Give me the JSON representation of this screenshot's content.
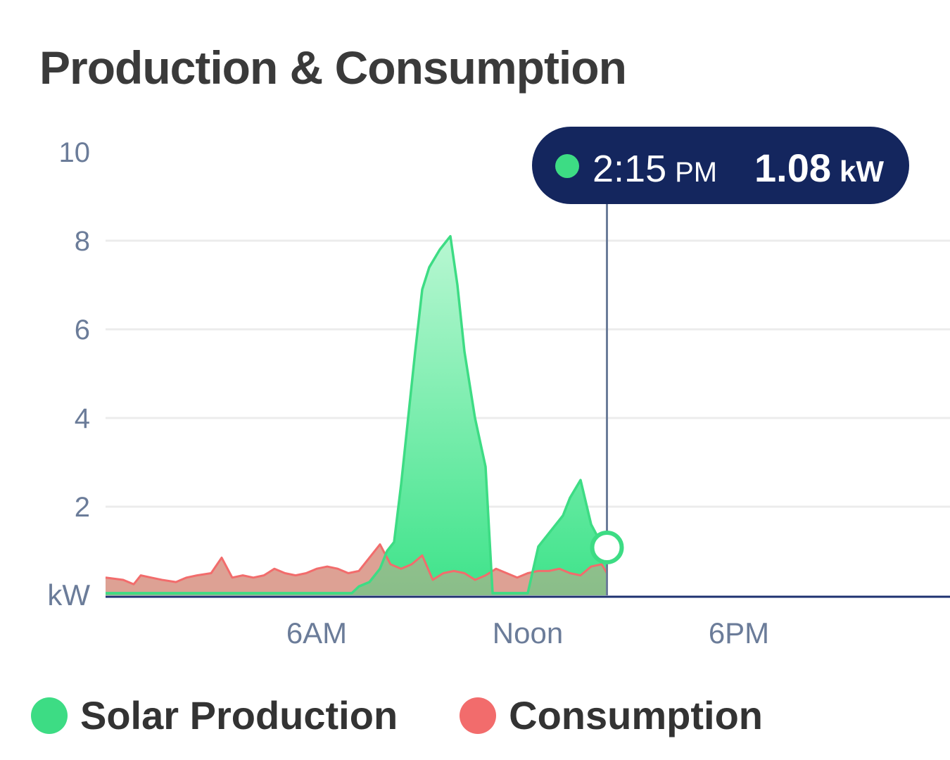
{
  "title": "Production & Consumption",
  "colors": {
    "production": "#3ddc84",
    "production_fill_top": "#b8f7d2",
    "production_fill_bottom": "#3ee38a",
    "consumption": "#f26c6c",
    "consumption_fill": "#f7a3a3",
    "overlap_fill": "#c9a088",
    "grid": "#ececec",
    "axis_text": "#6b7c99",
    "tooltip_bg": "#14265e",
    "cursor_line": "#6b7c99",
    "baseline": "#1e3170"
  },
  "tooltip": {
    "time": "2:15",
    "time_suffix": "PM",
    "value": "1.08",
    "unit": "kW"
  },
  "legend": [
    {
      "label": "Solar Production",
      "color": "#3ddc84"
    },
    {
      "label": "Consumption",
      "color": "#f26c6c"
    }
  ],
  "chart_data": {
    "type": "area",
    "title": "Production & Consumption",
    "ylabel": "kW",
    "ylim": [
      0,
      10
    ],
    "y_ticks": [
      "2",
      "4",
      "6",
      "8",
      "10"
    ],
    "y_unit_label": "kW",
    "xlim": [
      0,
      24
    ],
    "x_tick_positions": [
      6,
      12,
      18
    ],
    "x_tick_labels": [
      "6AM",
      "Noon",
      "6PM"
    ],
    "grid": true,
    "legend_position": "bottom-left",
    "cursor": {
      "x": 14.25,
      "y": 1.08
    },
    "series": [
      {
        "name": "Solar Production",
        "x": [
          0,
          7.0,
          7.2,
          7.5,
          7.8,
          8.0,
          8.2,
          8.4,
          8.6,
          8.8,
          9.0,
          9.2,
          9.5,
          9.8,
          10.0,
          10.2,
          10.5,
          10.8,
          11.0,
          11.3,
          11.5,
          11.7,
          12.0,
          12.3,
          12.8,
          13.0,
          13.2,
          13.5,
          13.8,
          14.0,
          14.25
        ],
        "y": [
          0.05,
          0.05,
          0.2,
          0.3,
          0.6,
          1.0,
          1.2,
          2.5,
          4.0,
          5.5,
          6.9,
          7.4,
          7.8,
          8.1,
          7.0,
          5.5,
          4.0,
          2.9,
          0.05,
          0.05,
          0.05,
          0.05,
          0.05,
          1.1,
          1.6,
          1.8,
          2.2,
          2.6,
          1.6,
          1.3,
          1.08
        ]
      },
      {
        "name": "Consumption",
        "x": [
          0,
          0.5,
          0.8,
          1.0,
          1.3,
          1.6,
          2.0,
          2.3,
          2.6,
          3.0,
          3.3,
          3.6,
          3.9,
          4.2,
          4.5,
          4.8,
          5.1,
          5.4,
          5.7,
          6.0,
          6.3,
          6.6,
          6.9,
          7.2,
          7.5,
          7.8,
          8.1,
          8.4,
          8.7,
          9.0,
          9.3,
          9.6,
          9.9,
          10.2,
          10.5,
          10.8,
          11.1,
          11.4,
          11.7,
          12.0,
          12.3,
          12.6,
          12.9,
          13.2,
          13.5,
          13.8,
          14.1,
          14.25
        ],
        "y": [
          0.4,
          0.35,
          0.25,
          0.45,
          0.4,
          0.35,
          0.3,
          0.4,
          0.45,
          0.5,
          0.85,
          0.4,
          0.45,
          0.4,
          0.45,
          0.6,
          0.5,
          0.45,
          0.5,
          0.6,
          0.65,
          0.6,
          0.5,
          0.55,
          0.85,
          1.15,
          0.7,
          0.6,
          0.7,
          0.9,
          0.35,
          0.5,
          0.55,
          0.5,
          0.35,
          0.45,
          0.6,
          0.5,
          0.4,
          0.5,
          0.55,
          0.55,
          0.6,
          0.5,
          0.45,
          0.65,
          0.7,
          0.5
        ]
      }
    ]
  }
}
